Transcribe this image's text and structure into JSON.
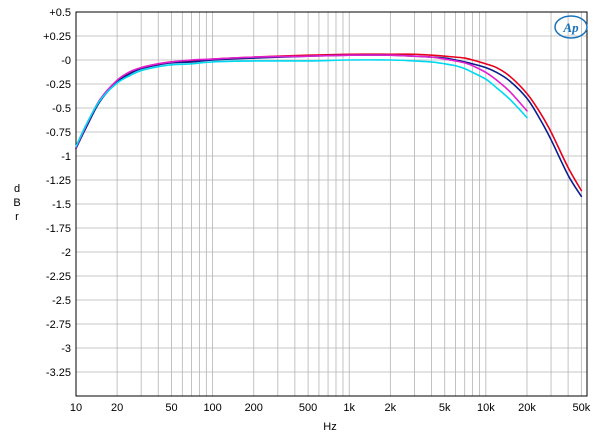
{
  "chart_data": {
    "type": "line",
    "xlabel": "Hz",
    "ylabel": "dBr",
    "x_scale": "log",
    "xlim": [
      10,
      55000
    ],
    "ylim": [
      -3.5,
      0.5
    ],
    "grid": true,
    "y_ticks": [
      {
        "value": 0.5,
        "label": "+0.5"
      },
      {
        "value": 0.25,
        "label": "+0.25"
      },
      {
        "value": 0,
        "label": "-0"
      },
      {
        "value": -0.25,
        "label": "-0.25"
      },
      {
        "value": -0.5,
        "label": "-0.5"
      },
      {
        "value": -0.75,
        "label": "-0.75"
      },
      {
        "value": -1,
        "label": "-1"
      },
      {
        "value": -1.25,
        "label": "-1.25"
      },
      {
        "value": -1.5,
        "label": "-1.5"
      },
      {
        "value": -1.75,
        "label": "-1.75"
      },
      {
        "value": -2,
        "label": "-2"
      },
      {
        "value": -2.25,
        "label": "-2.25"
      },
      {
        "value": -2.5,
        "label": "-2.5"
      },
      {
        "value": -2.75,
        "label": "-2.75"
      },
      {
        "value": -3,
        "label": "-3"
      },
      {
        "value": -3.25,
        "label": "-3.25"
      }
    ],
    "x_ticks": [
      {
        "value": 10,
        "label": "10"
      },
      {
        "value": 20,
        "label": "20"
      },
      {
        "value": 50,
        "label": "50"
      },
      {
        "value": 100,
        "label": "100"
      },
      {
        "value": 200,
        "label": "200"
      },
      {
        "value": 500,
        "label": "500"
      },
      {
        "value": 1000,
        "label": "1k"
      },
      {
        "value": 2000,
        "label": "2k"
      },
      {
        "value": 5000,
        "label": "5k"
      },
      {
        "value": 10000,
        "label": "10k"
      },
      {
        "value": 20000,
        "label": "20k"
      },
      {
        "value": 50000,
        "label": "50k"
      }
    ],
    "series": [
      {
        "color": "#e8001c",
        "x": [
          10,
          12,
          15,
          20,
          25,
          30,
          40,
          50,
          70,
          100,
          200,
          500,
          1000,
          2000,
          3000,
          4000,
          5000,
          6000,
          7000,
          8000,
          10000,
          12000,
          15000,
          20000,
          25000,
          30000,
          40000,
          50000
        ],
        "y": [
          -0.92,
          -0.68,
          -0.42,
          -0.22,
          -0.13,
          -0.08,
          -0.04,
          -0.02,
          -0.01,
          0.01,
          0.03,
          0.05,
          0.06,
          0.06,
          0.06,
          0.05,
          0.04,
          0.03,
          0.02,
          0.0,
          -0.04,
          -0.08,
          -0.17,
          -0.35,
          -0.55,
          -0.75,
          -1.12,
          -1.36
        ]
      },
      {
        "color": "#0a1e8c",
        "x": [
          10,
          12,
          15,
          20,
          25,
          30,
          40,
          50,
          70,
          100,
          200,
          500,
          1000,
          2000,
          3000,
          4000,
          5000,
          6000,
          7000,
          8000,
          10000,
          12000,
          15000,
          20000,
          25000,
          30000,
          40000,
          50000
        ],
        "y": [
          -0.92,
          -0.69,
          -0.43,
          -0.23,
          -0.14,
          -0.09,
          -0.05,
          -0.03,
          -0.02,
          0.0,
          0.02,
          0.04,
          0.05,
          0.05,
          0.04,
          0.03,
          0.02,
          0.0,
          -0.02,
          -0.04,
          -0.08,
          -0.13,
          -0.22,
          -0.4,
          -0.62,
          -0.83,
          -1.2,
          -1.42
        ]
      },
      {
        "color": "#e020d0",
        "x": [
          10,
          12,
          15,
          20,
          25,
          30,
          40,
          50,
          70,
          100,
          200,
          500,
          1000,
          2000,
          3000,
          4000,
          5000,
          6000,
          7000,
          8000,
          10000,
          12000,
          15000,
          20000
        ],
        "y": [
          -0.91,
          -0.67,
          -0.41,
          -0.21,
          -0.12,
          -0.08,
          -0.04,
          -0.02,
          0.0,
          0.01,
          0.03,
          0.04,
          0.05,
          0.05,
          0.04,
          0.03,
          0.01,
          -0.01,
          -0.03,
          -0.06,
          -0.13,
          -0.21,
          -0.33,
          -0.53
        ]
      },
      {
        "color": "#00d8f0",
        "x": [
          10,
          12,
          15,
          20,
          25,
          30,
          40,
          50,
          70,
          100,
          200,
          500,
          1000,
          2000,
          3000,
          4000,
          5000,
          6000,
          7000,
          8000,
          10000,
          12000,
          15000,
          20000
        ],
        "y": [
          -0.9,
          -0.66,
          -0.42,
          -0.24,
          -0.16,
          -0.11,
          -0.07,
          -0.05,
          -0.04,
          -0.02,
          -0.01,
          -0.01,
          0.0,
          0.0,
          -0.01,
          -0.02,
          -0.04,
          -0.06,
          -0.09,
          -0.13,
          -0.2,
          -0.29,
          -0.41,
          -0.6
        ]
      }
    ]
  },
  "logo": {
    "text": "Ap",
    "color": "#1a73b8"
  }
}
